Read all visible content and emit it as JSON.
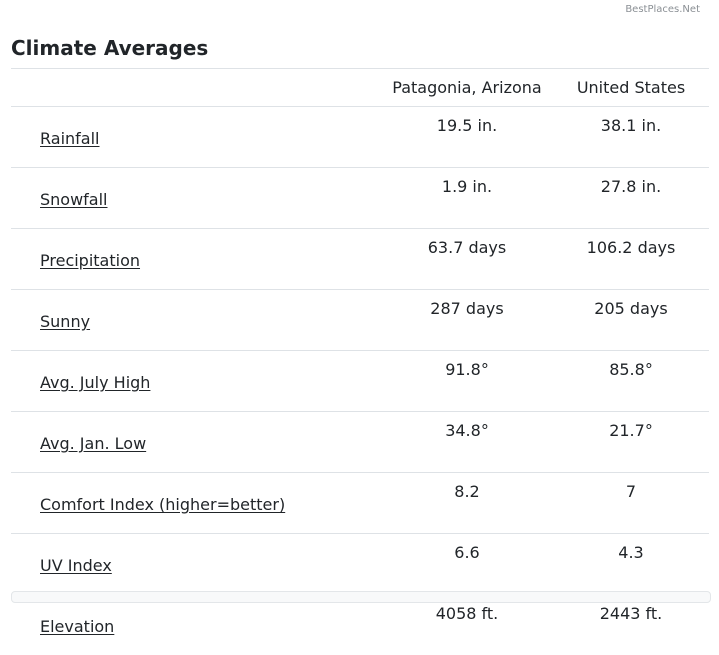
{
  "brand": "BestPlaces.Net",
  "title": "Climate Averages",
  "columns": {
    "place": "Patagonia, Arizona",
    "country": "United States"
  },
  "rows": [
    {
      "label": "Rainfall",
      "place": "19.5 in.",
      "country": "38.1 in."
    },
    {
      "label": "Snowfall",
      "place": "1.9 in.",
      "country": "27.8 in."
    },
    {
      "label": "Precipitation",
      "place": "63.7 days",
      "country": "106.2 days"
    },
    {
      "label": "Sunny",
      "place": "287 days",
      "country": "205 days"
    },
    {
      "label": "Avg. July High",
      "place": "91.8°",
      "country": "85.8°"
    },
    {
      "label": "Avg. Jan. Low",
      "place": "34.8°",
      "country": "21.7°"
    },
    {
      "label": "Comfort Index (higher=better)",
      "place": "8.2",
      "country": "7"
    },
    {
      "label": "UV Index",
      "place": "6.6",
      "country": "4.3"
    },
    {
      "label": "Elevation",
      "place": "4058 ft.",
      "country": "2443 ft."
    }
  ]
}
